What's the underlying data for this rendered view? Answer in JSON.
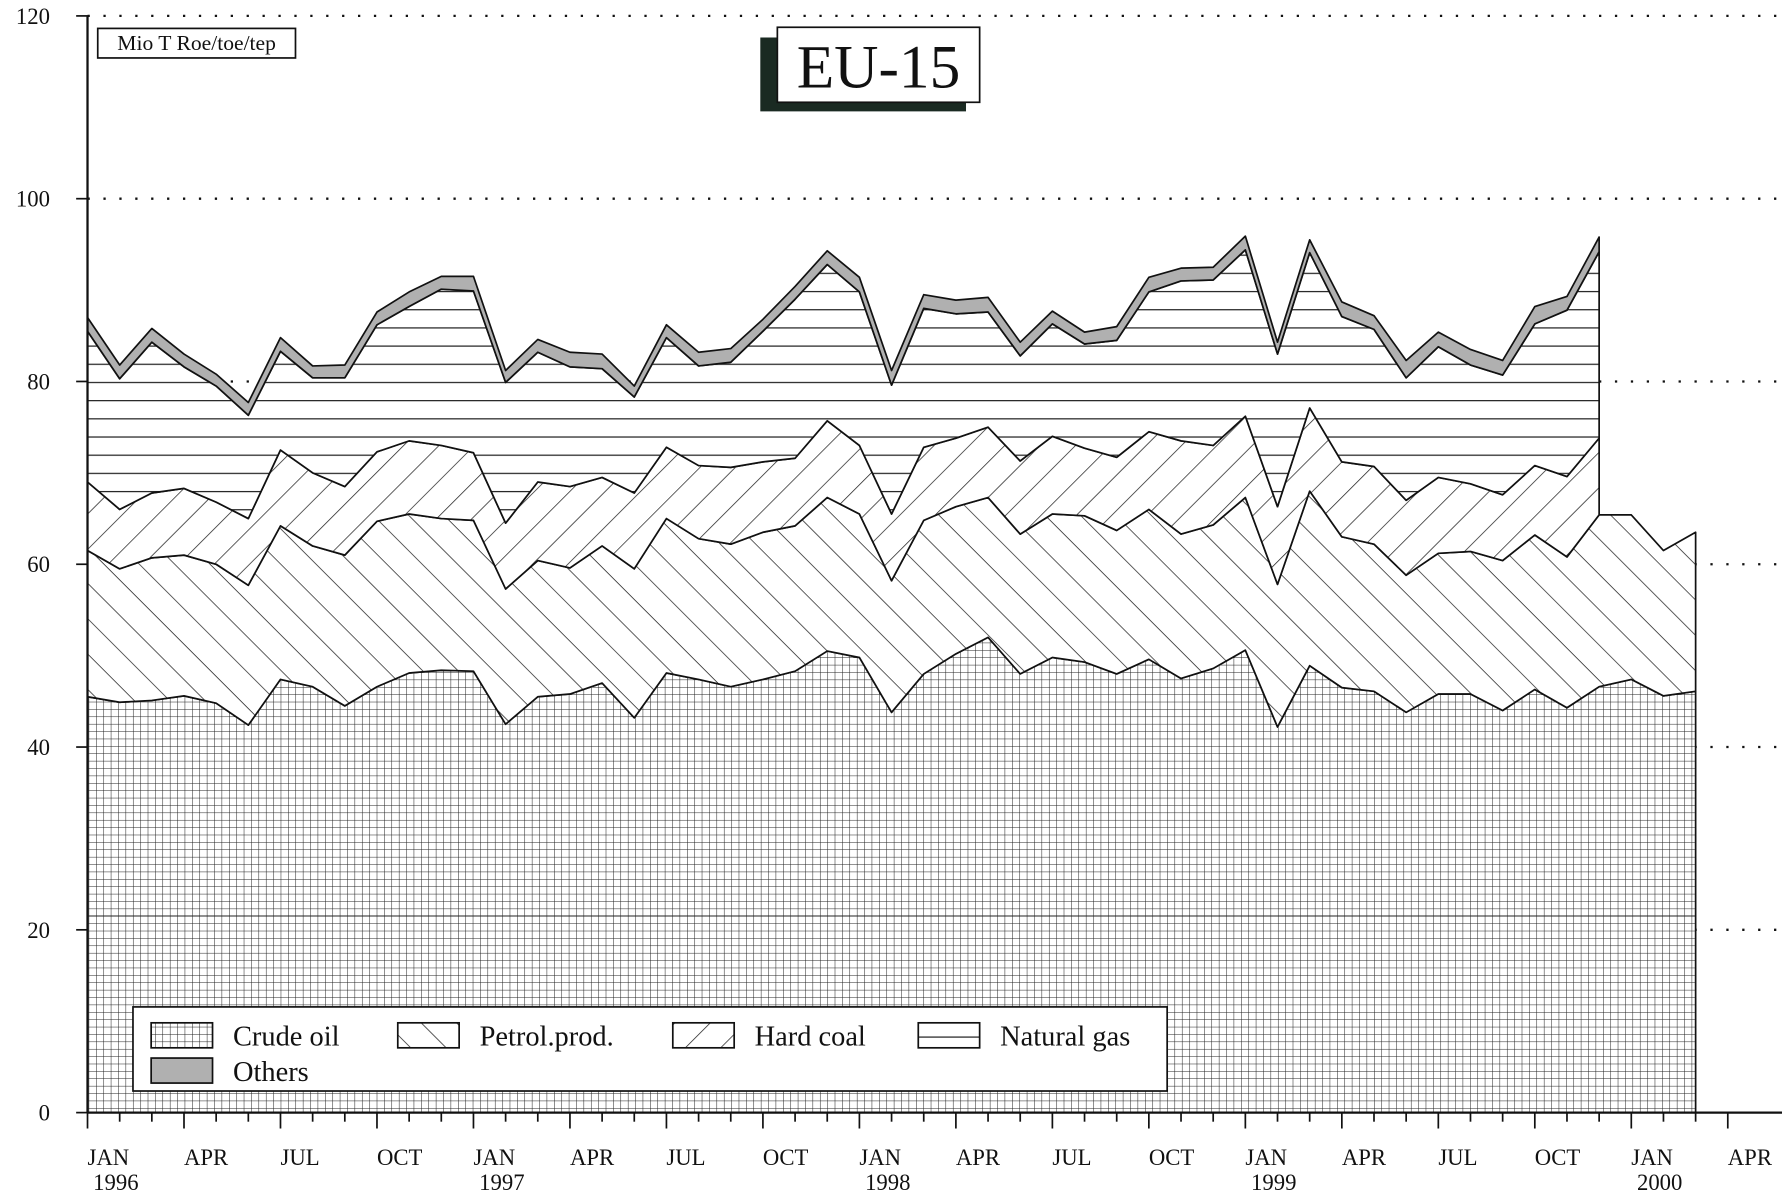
{
  "chart_data": {
    "type": "stacked_area",
    "title": "EU-15",
    "annotation": "Mio T Roe/toe/tep",
    "categories": [
      "JAN 1996",
      null,
      null,
      "APR",
      null,
      null,
      "JUL",
      null,
      null,
      "OCT",
      null,
      null,
      "JAN 1997",
      null,
      null,
      "APR",
      null,
      null,
      "JUL",
      null,
      null,
      "OCT",
      null,
      null,
      "JAN 1998",
      null,
      null,
      "APR",
      null,
      null,
      "JUL",
      null,
      null,
      "OCT",
      null,
      null,
      "JAN 1999",
      null,
      null,
      "APR",
      null,
      null,
      "JUL",
      null,
      null,
      "OCT",
      null,
      null,
      "JAN 2000",
      null,
      null,
      "APR"
    ],
    "series": [
      {
        "name": "Crude oil",
        "pattern": "grid",
        "values": [
          45.5,
          44.9,
          45.1,
          45.6,
          44.8,
          42.4,
          47.4,
          46.6,
          44.5,
          46.6,
          48.1,
          48.4,
          48.3,
          42.5,
          45.5,
          45.8,
          47.0,
          43.2,
          48.1,
          47.4,
          46.6,
          47.4,
          48.3,
          50.5,
          49.8,
          43.8,
          48.0,
          50.2,
          52.0,
          48.0,
          49.8,
          49.3,
          48.0,
          49.6,
          47.5,
          48.6,
          50.6,
          42.2,
          48.9,
          46.5,
          46.1,
          43.8,
          45.8,
          45.8,
          44.0,
          46.3,
          44.3,
          46.6,
          47.4,
          45.6,
          46.1,
          null
        ]
      },
      {
        "name": "Petrol.prod.",
        "pattern": "backslash",
        "values": [
          16.0,
          14.6,
          15.6,
          15.4,
          15.2,
          15.3,
          16.8,
          15.4,
          16.5,
          18.1,
          17.4,
          16.6,
          16.5,
          14.8,
          14.9,
          13.8,
          15.0,
          16.3,
          16.9,
          15.4,
          15.6,
          16.1,
          15.9,
          16.8,
          15.7,
          14.4,
          16.8,
          16.1,
          15.3,
          15.3,
          15.7,
          16.0,
          15.7,
          16.4,
          15.8,
          15.7,
          16.7,
          15.6,
          19.1,
          16.5,
          16.1,
          15.0,
          15.4,
          15.6,
          16.4,
          16.9,
          16.5,
          18.8,
          18.0,
          15.9,
          17.4,
          null
        ]
      },
      {
        "name": "Hard coal",
        "pattern": "slash",
        "values": [
          7.5,
          6.5,
          7.1,
          7.3,
          6.8,
          7.3,
          8.3,
          8.0,
          7.5,
          7.6,
          8.0,
          8.0,
          7.4,
          7.2,
          8.6,
          8.9,
          7.5,
          8.3,
          7.8,
          8.0,
          8.4,
          7.7,
          7.4,
          8.4,
          7.5,
          7.3,
          8.0,
          7.5,
          7.7,
          8.0,
          8.5,
          7.4,
          8.0,
          8.5,
          10.2,
          8.7,
          8.9,
          8.5,
          9.1,
          8.2,
          8.5,
          8.2,
          8.3,
          7.4,
          7.2,
          7.6,
          8.8,
          8.4,
          null,
          null,
          null,
          null
        ]
      },
      {
        "name": "Natural gas",
        "pattern": "horizontal",
        "values": [
          16.5,
          14.3,
          16.5,
          13.3,
          12.7,
          11.3,
          10.8,
          10.4,
          11.9,
          13.9,
          14.7,
          17.1,
          17.7,
          15.4,
          14.2,
          13.1,
          11.9,
          10.5,
          12.0,
          10.9,
          11.5,
          14.3,
          17.4,
          17.1,
          16.8,
          14.1,
          15.2,
          13.6,
          12.6,
          11.5,
          12.3,
          11.4,
          12.8,
          15.3,
          17.5,
          18.1,
          18.2,
          16.7,
          17.0,
          15.9,
          15.0,
          13.4,
          14.3,
          13.0,
          13.1,
          15.5,
          18.2,
          20.4,
          null,
          null,
          null,
          null
        ]
      },
      {
        "name": "Others",
        "pattern": "solid",
        "color": "#b0b0b0",
        "values": [
          1.5,
          1.5,
          1.5,
          1.4,
          1.3,
          1.4,
          1.5,
          1.3,
          1.4,
          1.4,
          1.6,
          1.4,
          1.6,
          1.3,
          1.4,
          1.6,
          1.6,
          1.2,
          1.4,
          1.5,
          1.5,
          1.3,
          1.4,
          1.5,
          1.6,
          1.6,
          1.5,
          1.5,
          1.6,
          1.5,
          1.4,
          1.3,
          1.5,
          1.6,
          1.4,
          1.4,
          1.5,
          1.3,
          1.4,
          1.6,
          1.5,
          1.9,
          1.6,
          1.7,
          1.6,
          1.9,
          1.5,
          1.6,
          null,
          null,
          null,
          null
        ]
      }
    ],
    "ylim": [
      0,
      120
    ],
    "yticks": [
      0,
      20,
      40,
      60,
      80,
      100,
      120
    ],
    "grid": true,
    "legend": "bottom-left"
  }
}
